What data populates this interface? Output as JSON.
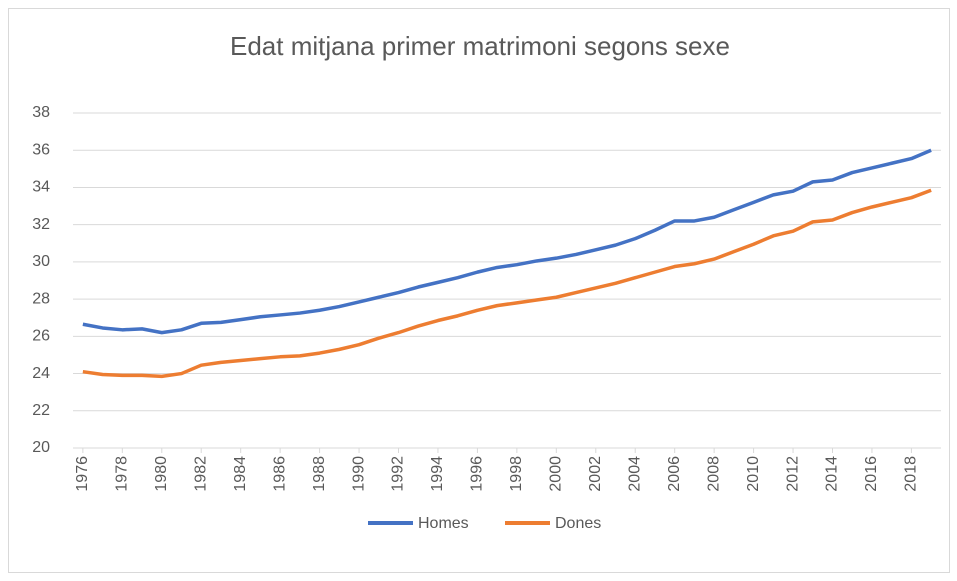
{
  "chart_data": {
    "type": "line",
    "title": "Edat mitjana primer matrimoni segons sexe",
    "x": [
      1976,
      1977,
      1978,
      1979,
      1980,
      1981,
      1982,
      1983,
      1984,
      1985,
      1986,
      1987,
      1988,
      1989,
      1990,
      1991,
      1992,
      1993,
      1994,
      1995,
      1996,
      1997,
      1998,
      1999,
      2000,
      2001,
      2002,
      2003,
      2004,
      2005,
      2006,
      2007,
      2008,
      2009,
      2010,
      2011,
      2012,
      2013,
      2014,
      2015,
      2016,
      2017,
      2018,
      2019
    ],
    "series": [
      {
        "name": "Homes",
        "color": "#4472c4",
        "values": [
          26.65,
          26.45,
          26.35,
          26.4,
          26.2,
          26.35,
          26.7,
          26.75,
          26.9,
          27.05,
          27.15,
          27.25,
          27.4,
          27.6,
          27.85,
          28.1,
          28.35,
          28.65,
          28.9,
          29.15,
          29.45,
          29.7,
          29.85,
          30.05,
          30.2,
          30.4,
          30.65,
          30.9,
          31.25,
          31.7,
          32.2,
          32.2,
          32.4,
          32.8,
          33.2,
          33.6,
          33.8,
          34.3,
          34.4,
          34.8,
          35.05,
          35.3,
          35.55,
          36.0
        ]
      },
      {
        "name": "Dones",
        "color": "#ed7d31",
        "values": [
          24.1,
          23.95,
          23.9,
          23.9,
          23.85,
          24.0,
          24.45,
          24.6,
          24.7,
          24.8,
          24.9,
          24.95,
          25.1,
          25.3,
          25.55,
          25.9,
          26.2,
          26.55,
          26.85,
          27.1,
          27.4,
          27.65,
          27.8,
          27.95,
          28.1,
          28.35,
          28.6,
          28.85,
          29.15,
          29.45,
          29.75,
          29.9,
          30.15,
          30.55,
          30.95,
          31.4,
          31.65,
          32.15,
          32.25,
          32.65,
          32.95,
          33.2,
          33.45,
          33.85
        ]
      }
    ],
    "xlim": [
      1975.5,
      2019.5
    ],
    "xticks": [
      1976,
      1978,
      1980,
      1982,
      1984,
      1986,
      1988,
      1990,
      1992,
      1994,
      1996,
      1998,
      2000,
      2002,
      2004,
      2006,
      2008,
      2010,
      2012,
      2014,
      2016,
      2018
    ],
    "ylim": [
      20,
      38
    ],
    "yticks": [
      20,
      22,
      24,
      26,
      28,
      30,
      32,
      34,
      36,
      38
    ],
    "grid": true,
    "legend": "bottom"
  }
}
